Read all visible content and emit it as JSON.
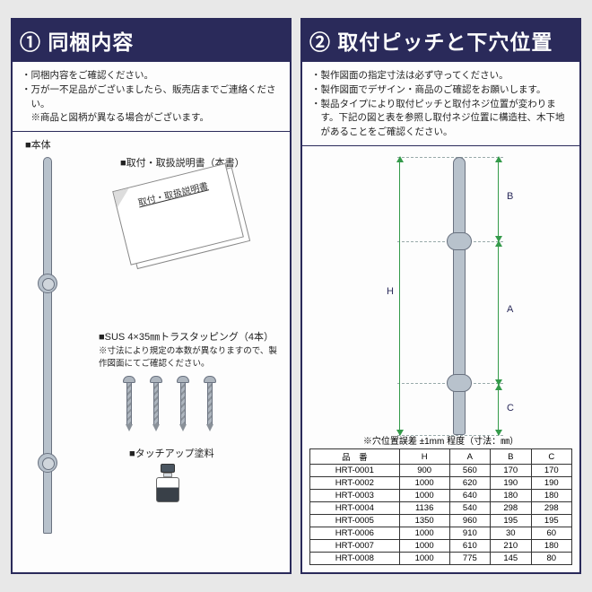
{
  "left": {
    "header": "① 同梱内容",
    "notes": [
      "・同梱内容をご確認ください。",
      "・万が一不足品がございましたら、販売店までご連絡ください。",
      "　※商品と図柄が異なる場合がございます。"
    ],
    "labels": {
      "body": "■本体",
      "manual": "■取付・取扱説明書（本書）",
      "manual_sheet": "取付・取扱説明書",
      "screws": "■SUS 4×35㎜トラスタッピング（4本）",
      "screws_note": "※寸法により規定の本数が異なりますので、製作図面にてご確認ください。",
      "paint": "■タッチアップ塗料"
    }
  },
  "right": {
    "header": "② 取付ピッチと下穴位置",
    "notes": [
      "・製作図面の指定寸法は必ず守ってください。",
      "・製作図面でデザイン・商品のご確認をお願いします。",
      "・製品タイプにより取付ピッチと取付ネジ位置が変わります。下記の図と表を参照し取付ネジ位置に構造柱、木下地があることをご確認ください。"
    ],
    "dims": {
      "H": "H",
      "A": "A",
      "B": "B",
      "C": "C"
    },
    "table_title": "※穴位置誤差 ±1mm 程度（寸法：㎜）",
    "columns": [
      "品　番",
      "H",
      "A",
      "B",
      "C"
    ],
    "rows": [
      [
        "HRT-0001",
        "900",
        "560",
        "170",
        "170"
      ],
      [
        "HRT-0002",
        "1000",
        "620",
        "190",
        "190"
      ],
      [
        "HRT-0003",
        "1000",
        "640",
        "180",
        "180"
      ],
      [
        "HRT-0004",
        "1136",
        "540",
        "298",
        "298"
      ],
      [
        "HRT-0005",
        "1350",
        "960",
        "195",
        "195"
      ],
      [
        "HRT-0006",
        "1000",
        "910",
        "30",
        "60"
      ],
      [
        "HRT-0007",
        "1000",
        "610",
        "210",
        "180"
      ],
      [
        "HRT-0008",
        "1000",
        "775",
        "145",
        "80"
      ]
    ]
  },
  "colors": {
    "frame": "#2a2a5a",
    "metal": "#b8c2cc",
    "dim": "#349a4a"
  }
}
